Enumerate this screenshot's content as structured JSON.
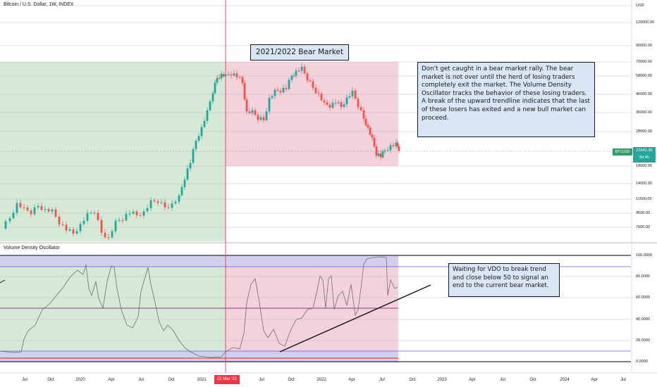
{
  "header": {
    "symbol_title": "Bitcoin / U.S. Dollar, 1W, INDEX"
  },
  "indicator": {
    "name": "Volume Density Oscillator"
  },
  "annotations": {
    "bear_title": "2021/2022 Bear Market",
    "note_main": "Don't get caught in a bear market rally.  The bear market is not over until the herd of losing traders completely exit the market.  The Volume Density Oscillator tracks the behavior of these losing traders. A break of the upward trendline indicates that the last of these losers has exited and a new bull market can proceed.",
    "note_vdo": "Waiting for VDO to break trend and close below 50 to signal an end to the current bear market."
  },
  "price_axis": {
    "currency": "USD",
    "labels": [
      "120000.00",
      "90000.00",
      "70000.00",
      "58000.00",
      "46000.00",
      "36000.00",
      "28000.00",
      "18000.00",
      "14000.00",
      "11500.00",
      "9500.00",
      "7900.00"
    ],
    "current_symbol": "BTCUSD",
    "current_price": "21541.30",
    "countdown": "5d 4h"
  },
  "oscillator_axis": {
    "labels": [
      "100.0000",
      "80.0000",
      "60.0000",
      "40.0000",
      "20.0000",
      "0.0000"
    ]
  },
  "time_axis": {
    "labels": [
      "Jul",
      "Oct",
      "2020",
      "Apr",
      "Jul",
      "Oct",
      "2021",
      "Jul",
      "Oct",
      "2022",
      "Apr",
      "Jul",
      "Oct",
      "2023",
      "Apr",
      "Jul",
      "Oct",
      "2024",
      "Apr",
      "Jul"
    ],
    "crosshair_date": "22 Mar '21"
  },
  "colors": {
    "bull_zone": "#d5e8d4",
    "bear_zone": "#f2d0da",
    "candle_up": "#26a69a",
    "candle_down": "#ef5350",
    "vline": "#f23645",
    "band_purple": "#c9c8f0"
  }
}
